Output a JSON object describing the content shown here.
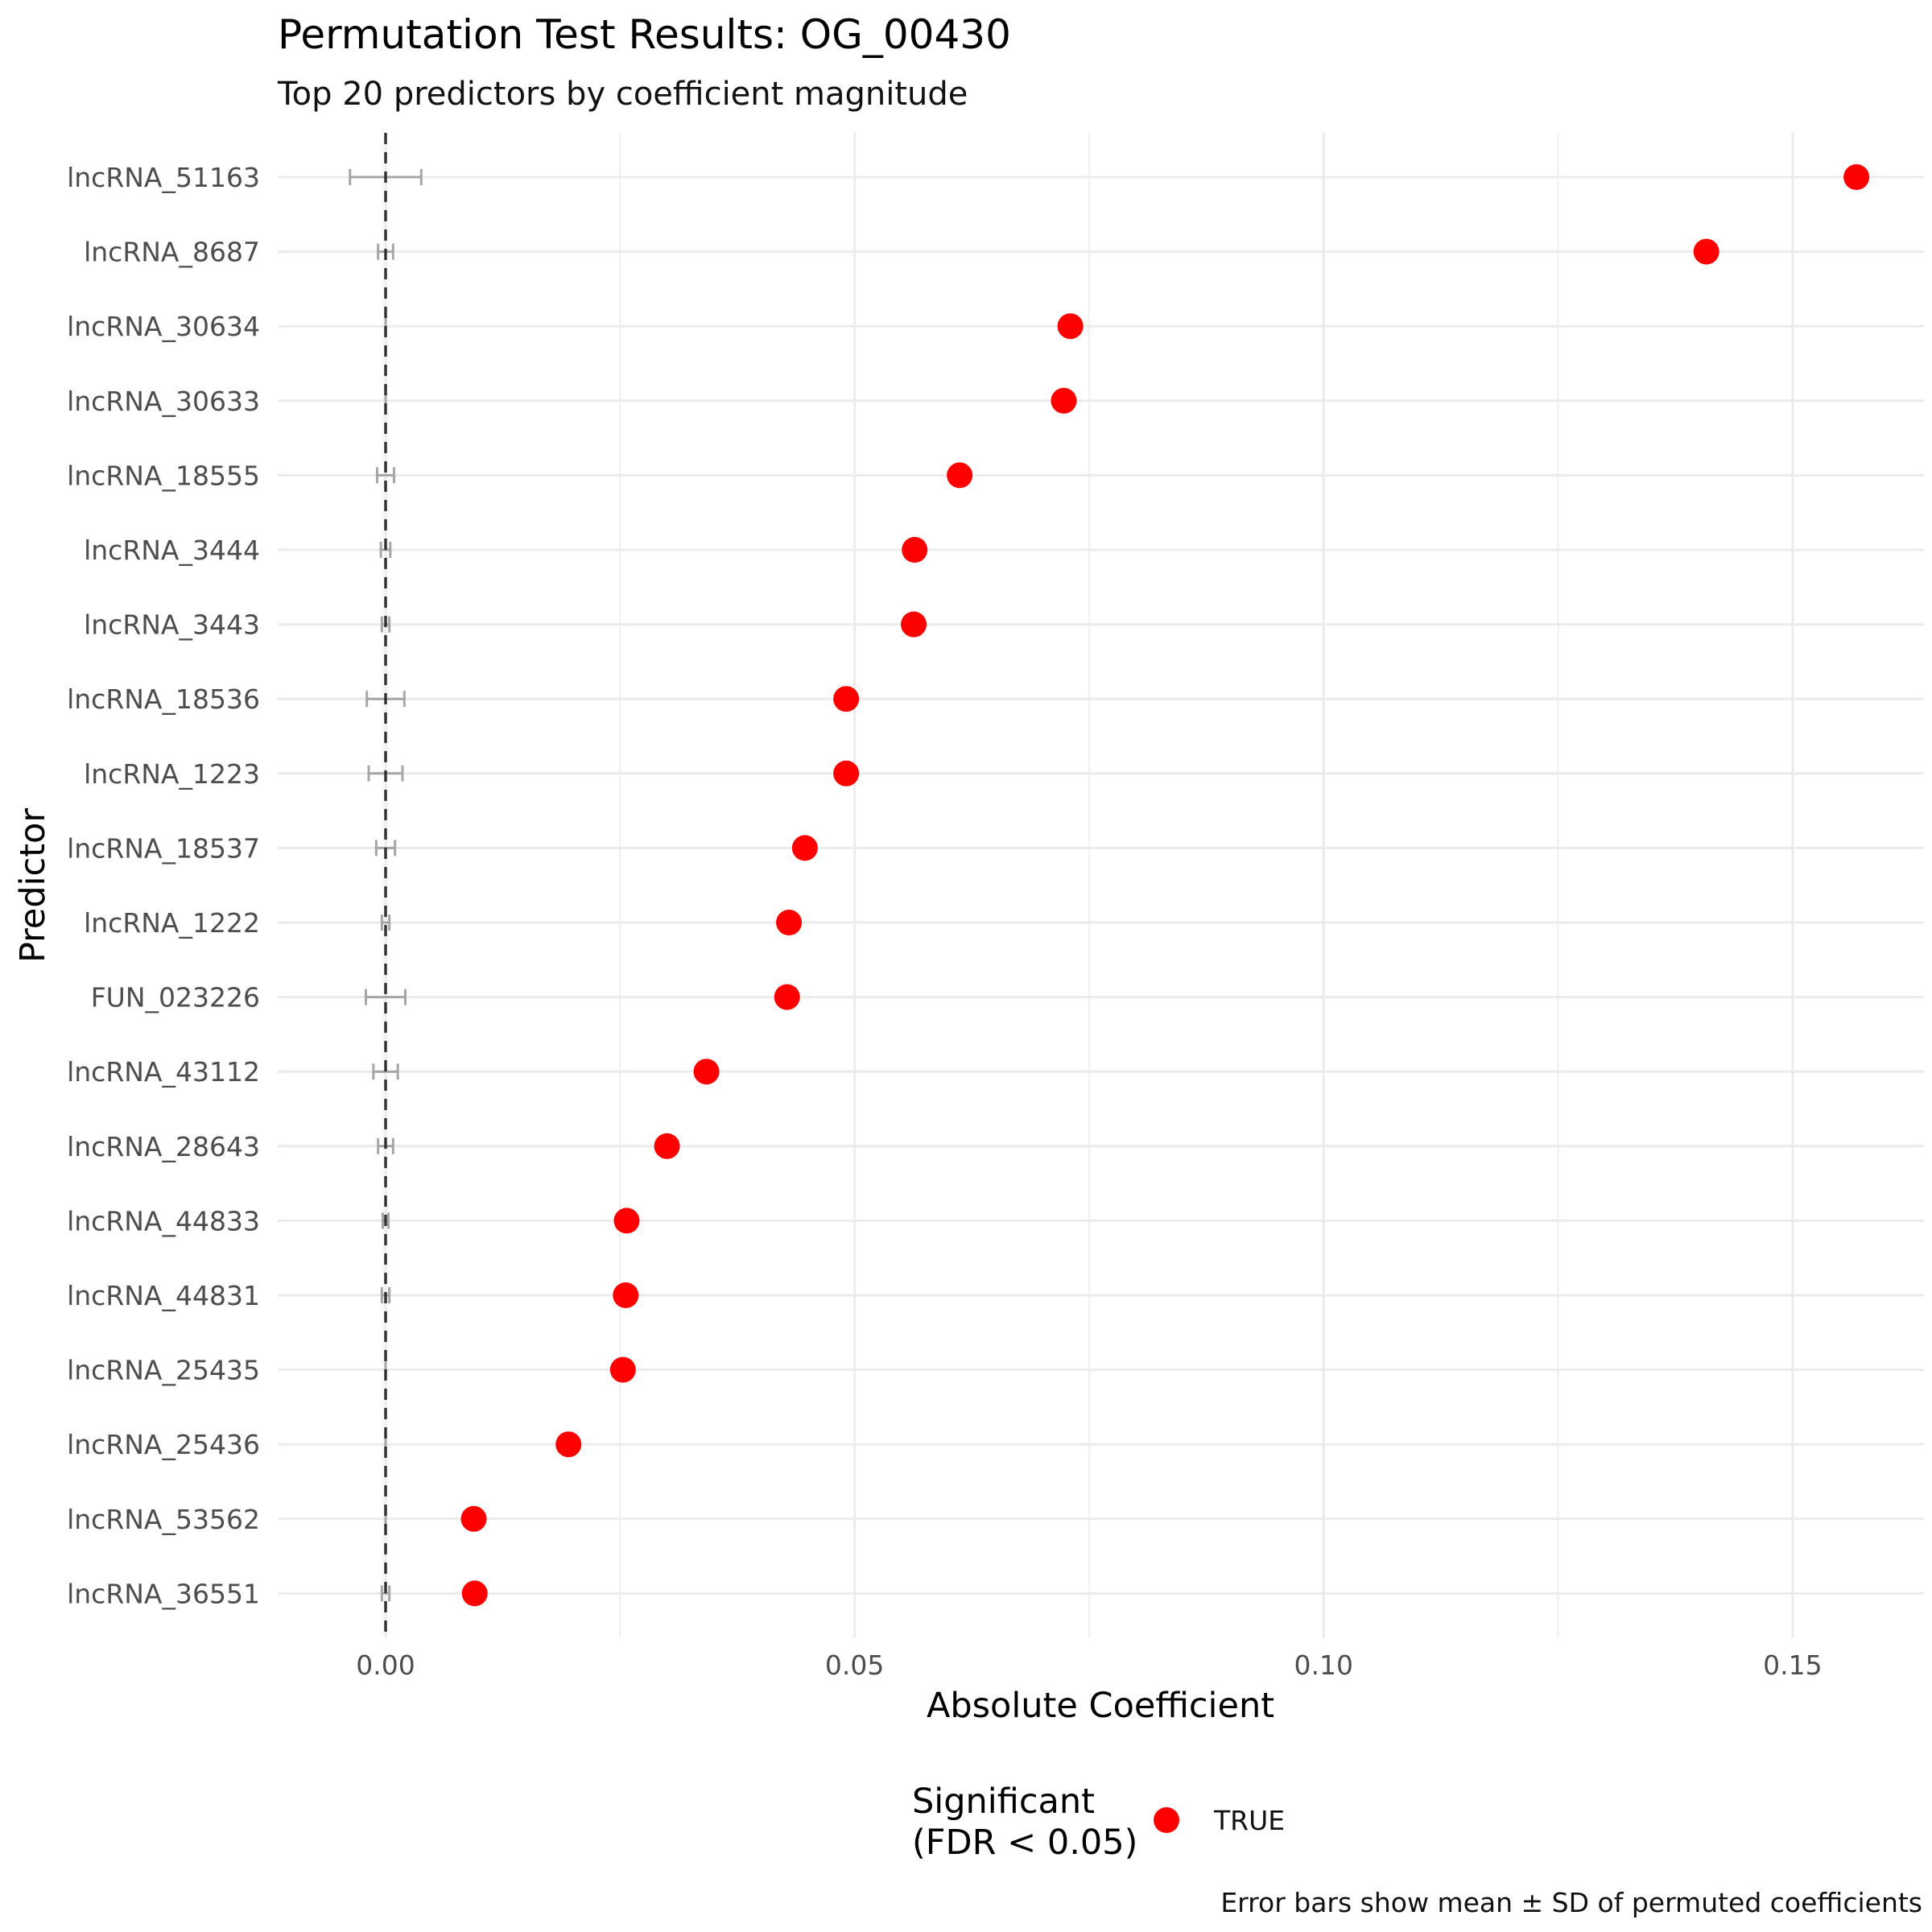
{
  "chart_data": {
    "type": "scatter",
    "title": "Permutation Test Results: OG_00430",
    "subtitle": "Top 20 predictors by coefficient magnitude",
    "xlabel": "Absolute Coefficient",
    "ylabel": "Predictor",
    "xlim": [
      -0.0115,
      0.164
    ],
    "x_ticks": [
      0.0,
      0.05,
      0.1,
      0.15
    ],
    "x_tick_labels": [
      "0.00",
      "0.05",
      "0.10",
      "0.15"
    ],
    "grid": true,
    "reference_line": {
      "x": 0,
      "style": "dashed"
    },
    "categories": [
      "lncRNA_51163",
      "lncRNA_8687",
      "lncRNA_30634",
      "lncRNA_30633",
      "lncRNA_18555",
      "lncRNA_3444",
      "lncRNA_3443",
      "lncRNA_18536",
      "lncRNA_1223",
      "lncRNA_18537",
      "lncRNA_1222",
      "FUN_023226",
      "lncRNA_43112",
      "lncRNA_28643",
      "lncRNA_44833",
      "lncRNA_44831",
      "lncRNA_25435",
      "lncRNA_25436",
      "lncRNA_53562",
      "lncRNA_36551"
    ],
    "series": [
      {
        "name": "TRUE",
        "color": "#ff0000",
        "values": [
          0.1568,
          0.1408,
          0.073,
          0.0723,
          0.0612,
          0.0564,
          0.0563,
          0.0491,
          0.0491,
          0.0447,
          0.043,
          0.0428,
          0.0342,
          0.03,
          0.0257,
          0.0256,
          0.0253,
          0.0195,
          0.0094,
          0.0095
        ]
      }
    ],
    "error_bars": {
      "color": "#a6a6a6",
      "mean": [
        0.0,
        0.0,
        0.0,
        0.0,
        0.0,
        0.0,
        0.0,
        0.0,
        0.0,
        0.0,
        0.0,
        0.0,
        0.0,
        0.0,
        0.0,
        0.0,
        0.0,
        0.0,
        0.0,
        0.0
      ],
      "sd": [
        0.0038,
        0.0008,
        0.0,
        0.0,
        0.0009,
        0.0005,
        0.0004,
        0.002,
        0.0018,
        0.001,
        0.0004,
        0.0021,
        0.0013,
        0.0008,
        0.0003,
        0.0004,
        0.0,
        0.0,
        0.0,
        0.0004
      ]
    },
    "legend": {
      "title_lines": [
        "Significant",
        "(FDR < 0.05)"
      ],
      "label": "TRUE",
      "placement": "bottom"
    },
    "caption": "Error bars show mean ± SD of permuted coefficients"
  }
}
